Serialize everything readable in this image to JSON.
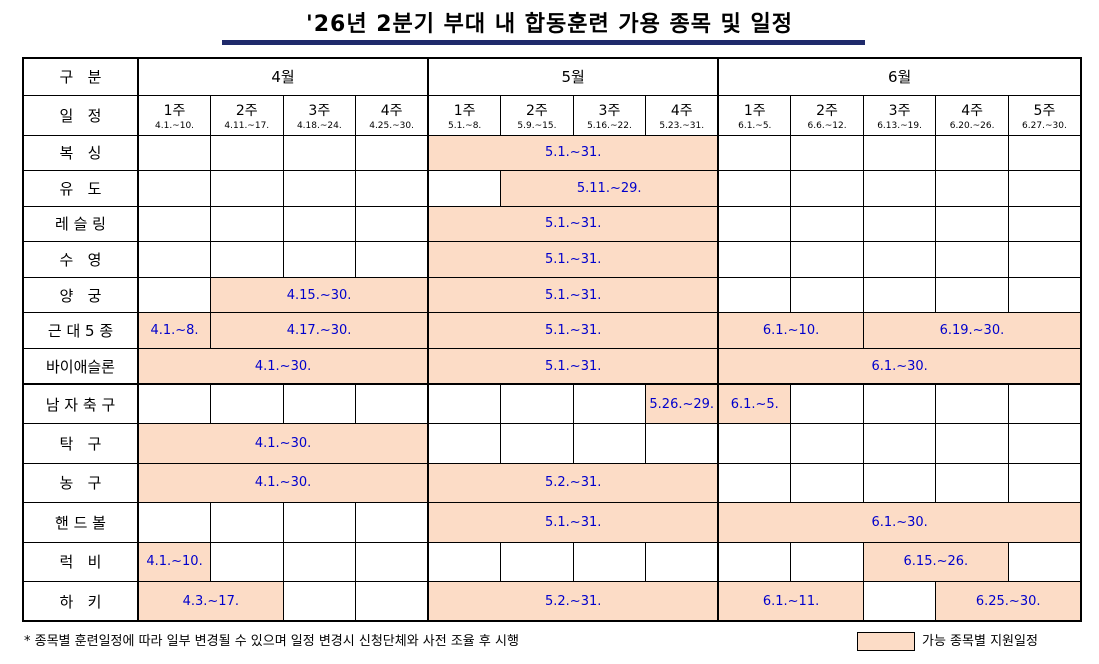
{
  "header": {
    "title": "'26년 2분기 부대 내 합동훈련 가용 종목 및 일정"
  },
  "table": {
    "corner_top": "구   분",
    "corner_bottom": "일   정",
    "months": [
      {
        "label": "4월",
        "weeks": [
          {
            "label": "1주",
            "dates": "4.1.~10."
          },
          {
            "label": "2주",
            "dates": "4.11.~17."
          },
          {
            "label": "3주",
            "dates": "4.18.~24."
          },
          {
            "label": "4주",
            "dates": "4.25.~30."
          }
        ]
      },
      {
        "label": "5월",
        "weeks": [
          {
            "label": "1주",
            "dates": "5.1.~8."
          },
          {
            "label": "2주",
            "dates": "5.9.~15."
          },
          {
            "label": "3주",
            "dates": "5.16.~22."
          },
          {
            "label": "4주",
            "dates": "5.23.~31."
          }
        ]
      },
      {
        "label": "6월",
        "weeks": [
          {
            "label": "1주",
            "dates": "6.1.~5."
          },
          {
            "label": "2주",
            "dates": "6.6.~12."
          },
          {
            "label": "3주",
            "dates": "6.13.~19."
          },
          {
            "label": "4주",
            "dates": "6.20.~26."
          },
          {
            "label": "5주",
            "dates": "6.27.~30."
          }
        ]
      }
    ],
    "sections": [
      [
        {
          "label": "복   싱",
          "periods": [
            {
              "cols": [
                4,
                7
              ],
              "text": "5.1.~31."
            }
          ]
        },
        {
          "label": "유   도",
          "periods": [
            {
              "cols": [
                5,
                7
              ],
              "text": "5.11.~29."
            }
          ]
        },
        {
          "label": "레 슬 링",
          "periods": [
            {
              "cols": [
                4,
                7
              ],
              "text": "5.1.~31."
            }
          ]
        },
        {
          "label": "수   영",
          "periods": [
            {
              "cols": [
                4,
                7
              ],
              "text": "5.1.~31."
            }
          ]
        },
        {
          "label": "양   궁",
          "periods": [
            {
              "cols": [
                1,
                3
              ],
              "text": "4.15.~30."
            },
            {
              "cols": [
                4,
                7
              ],
              "text": "5.1.~31."
            }
          ]
        },
        {
          "label": "근 대 5 종",
          "periods": [
            {
              "cols": [
                0,
                0
              ],
              "text": "4.1.~8."
            },
            {
              "cols": [
                1,
                3
              ],
              "text": "4.17.~30."
            },
            {
              "cols": [
                4,
                7
              ],
              "text": "5.1.~31."
            },
            {
              "cols": [
                8,
                9
              ],
              "text": "6.1.~10."
            },
            {
              "cols": [
                10,
                12
              ],
              "text": "6.19.~30."
            }
          ]
        },
        {
          "label": "바이애슬론",
          "periods": [
            {
              "cols": [
                0,
                3
              ],
              "text": "4.1.~30."
            },
            {
              "cols": [
                4,
                7
              ],
              "text": "5.1.~31."
            },
            {
              "cols": [
                8,
                12
              ],
              "text": "6.1.~30."
            }
          ]
        }
      ],
      [
        {
          "label": "남 자 축 구",
          "periods": [
            {
              "cols": [
                7,
                7
              ],
              "text": "5.26.~29."
            },
            {
              "cols": [
                8,
                8
              ],
              "text": "6.1.~5."
            }
          ]
        },
        {
          "label": "탁   구",
          "periods": [
            {
              "cols": [
                0,
                3
              ],
              "text": "4.1.~30."
            }
          ]
        },
        {
          "label": "농   구",
          "periods": [
            {
              "cols": [
                0,
                3
              ],
              "text": "4.1.~30."
            },
            {
              "cols": [
                4,
                7
              ],
              "text": "5.2.~31."
            }
          ]
        },
        {
          "label": "핸 드 볼",
          "periods": [
            {
              "cols": [
                4,
                7
              ],
              "text": "5.1.~31."
            },
            {
              "cols": [
                8,
                12
              ],
              "text": "6.1.~30."
            }
          ]
        },
        {
          "label": "럭   비",
          "periods": [
            {
              "cols": [
                0,
                0
              ],
              "text": "4.1.~10."
            },
            {
              "cols": [
                10,
                11
              ],
              "text": "6.15.~26."
            }
          ]
        },
        {
          "label": "하   키",
          "periods": [
            {
              "cols": [
                0,
                1
              ],
              "text": "4.3.~17."
            },
            {
              "cols": [
                4,
                7
              ],
              "text": "5.2.~31."
            },
            {
              "cols": [
                8,
                9
              ],
              "text": "6.1.~11."
            },
            {
              "cols": [
                11,
                12
              ],
              "text": "6.25.~30."
            }
          ]
        }
      ]
    ]
  },
  "footer": {
    "note": "* 종목별 훈련일정에 따라 일부 변경될 수 있으며 일정 변경시 신청단체와 사전 조율 후 시행",
    "legend": "가능 종목별 지원일정"
  }
}
